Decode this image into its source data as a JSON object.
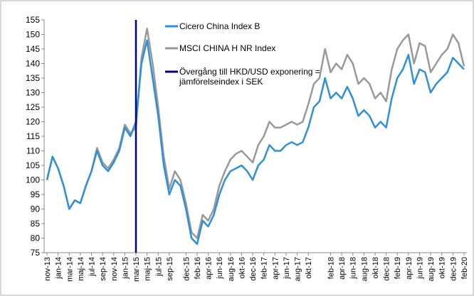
{
  "chart_data": {
    "type": "line",
    "categories": [
      "nov-13",
      null,
      "jan-14",
      null,
      "mar-14",
      null,
      "maj-14",
      null,
      "jul-14",
      null,
      "sep-14",
      null,
      "nov-14",
      null,
      "jan-15",
      null,
      "mar-15",
      null,
      "maj-15",
      null,
      "jul-15",
      null,
      "sep-15",
      null,
      null,
      "dec-15",
      null,
      "feb-16",
      null,
      "apr-16",
      null,
      "jun-16",
      null,
      "aug-16",
      null,
      "okt-16",
      null,
      "dec-16",
      null,
      "feb-17",
      null,
      "apr-17",
      null,
      "jun-17",
      null,
      "aug-17",
      null,
      "okt-17",
      null,
      null,
      null,
      "feb-18",
      null,
      "apr-18",
      null,
      "jun-18",
      null,
      "aug-18",
      null,
      "okt-18",
      null,
      "dec-18",
      null,
      "feb-19",
      null,
      "apr-19",
      null,
      "jun-19",
      null,
      "aug-19",
      null,
      "okt-19",
      null,
      "dec-19",
      null,
      "feb-20"
    ],
    "series": [
      {
        "name": "Cicero China Index B",
        "color": "#2f8fd8",
        "values": [
          100,
          108,
          104,
          98,
          90,
          93,
          92,
          98,
          103,
          110,
          105,
          103,
          106,
          110,
          118,
          115,
          120,
          140,
          148,
          135,
          122,
          105,
          95,
          100,
          98,
          90,
          80,
          78,
          86,
          84,
          88,
          95,
          100,
          103,
          104,
          105,
          103,
          100,
          105,
          107,
          112,
          110,
          110,
          112,
          113,
          112,
          113,
          118,
          125,
          127,
          135,
          128,
          130,
          128,
          132,
          128,
          122,
          124,
          122,
          118,
          120,
          118,
          128,
          135,
          138,
          143,
          133,
          138,
          137,
          130,
          133,
          135,
          137,
          142,
          140,
          138
        ]
      },
      {
        "name": "MSCI CHINA H NR Index",
        "color": "#999999",
        "values": [
          100,
          108,
          104,
          98,
          90,
          93,
          92,
          98,
          103,
          111,
          106,
          104,
          107,
          111,
          119,
          116,
          118,
          142,
          152,
          140,
          125,
          108,
          97,
          103,
          100,
          92,
          82,
          80,
          88,
          86,
          90,
          98,
          103,
          107,
          109,
          110,
          108,
          106,
          112,
          115,
          120,
          118,
          118,
          119,
          120,
          119,
          120,
          126,
          133,
          135,
          145,
          137,
          140,
          138,
          143,
          140,
          133,
          135,
          133,
          128,
          130,
          127,
          138,
          145,
          148,
          150,
          140,
          147,
          146,
          137,
          140,
          143,
          145,
          150,
          147,
          139
        ]
      }
    ],
    "vline": {
      "name": "Övergång till HKD/USD exponering = jämförelseindex i SEK",
      "color": "#000080",
      "x": "mar-15"
    },
    "ylim": [
      75,
      155
    ],
    "yticks": [
      75,
      80,
      85,
      90,
      95,
      100,
      105,
      110,
      115,
      120,
      125,
      130,
      135,
      140,
      145,
      150,
      155
    ],
    "grid": false
  }
}
